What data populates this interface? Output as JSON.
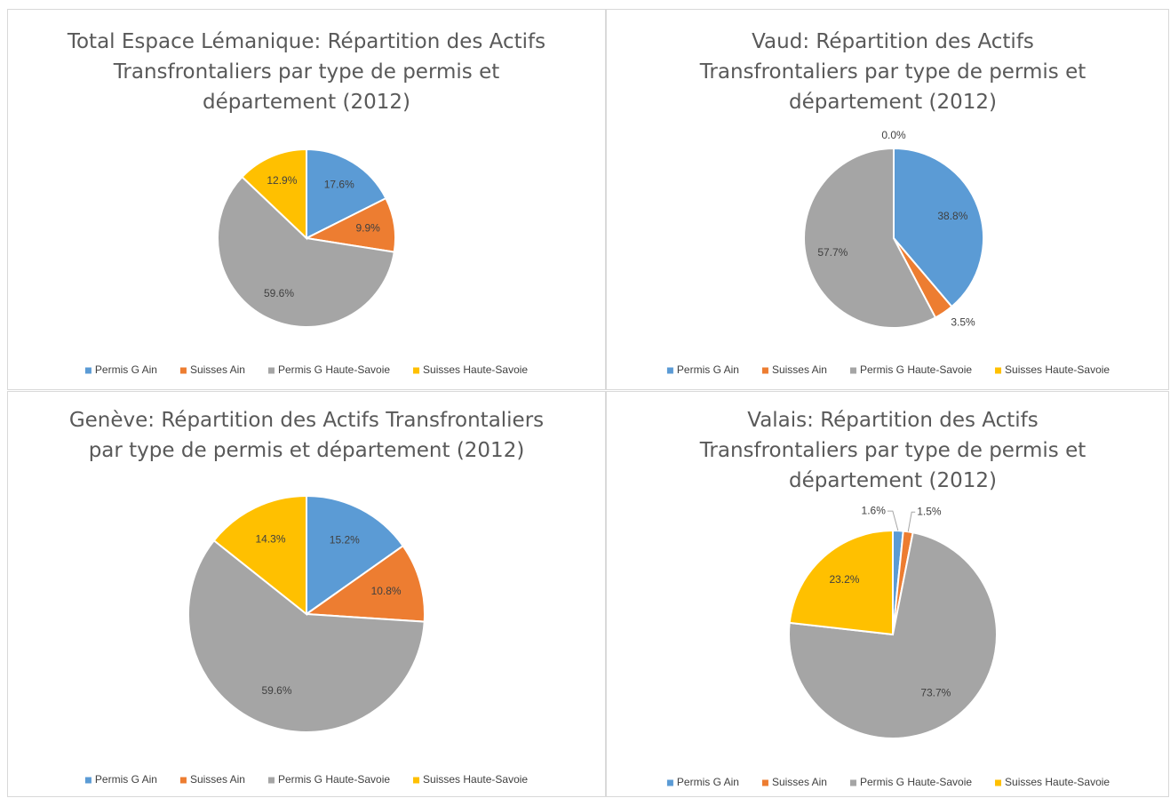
{
  "chart_data": [
    {
      "type": "pie",
      "title": "Total Espace Lémanique: Répartition des Actifs Transfrontaliers par type de permis et département (2012)",
      "categories": [
        "Permis G Ain",
        "Suisses Ain",
        "Permis G Haute-Savoie",
        "Suisses Haute-Savoie"
      ],
      "values": [
        17.6,
        9.9,
        59.6,
        12.9
      ],
      "value_labels": [
        "17.6%",
        "9.9%",
        "59.6%",
        "12.9%"
      ],
      "colors": [
        "#5b9bd5",
        "#ed7d31",
        "#a5a5a5",
        "#ffc000"
      ]
    },
    {
      "type": "pie",
      "title": "Vaud: Répartition des Actifs Transfrontaliers par type de permis et département (2012)",
      "categories": [
        "Permis G Ain",
        "Suisses Ain",
        "Permis G Haute-Savoie",
        "Suisses Haute-Savoie"
      ],
      "values": [
        38.8,
        3.5,
        57.7,
        0.0
      ],
      "value_labels": [
        "38.8%",
        "3.5%",
        "57.7%",
        "0.0%"
      ],
      "colors": [
        "#5b9bd5",
        "#ed7d31",
        "#a5a5a5",
        "#ffc000"
      ]
    },
    {
      "type": "pie",
      "title": "Genève: Répartition des Actifs Transfrontaliers par type de permis et département (2012)",
      "categories": [
        "Permis G Ain",
        "Suisses Ain",
        "Permis G Haute-Savoie",
        "Suisses Haute-Savoie"
      ],
      "values": [
        15.2,
        10.8,
        59.6,
        14.3
      ],
      "value_labels": [
        "15.2%",
        "10.8%",
        "59.6%",
        "14.3%"
      ],
      "colors": [
        "#5b9bd5",
        "#ed7d31",
        "#a5a5a5",
        "#ffc000"
      ]
    },
    {
      "type": "pie",
      "title": "Valais: Répartition des Actifs Transfrontaliers par type de permis et département (2012)",
      "categories": [
        "Permis G Ain",
        "Suisses Ain",
        "Permis G Haute-Savoie",
        "Suisses Haute-Savoie"
      ],
      "values": [
        1.6,
        1.5,
        73.7,
        23.2
      ],
      "value_labels": [
        "1.6%",
        "1.5%",
        "73.7%",
        "23.2%"
      ],
      "colors": [
        "#5b9bd5",
        "#ed7d31",
        "#a5a5a5",
        "#ffc000"
      ]
    }
  ]
}
